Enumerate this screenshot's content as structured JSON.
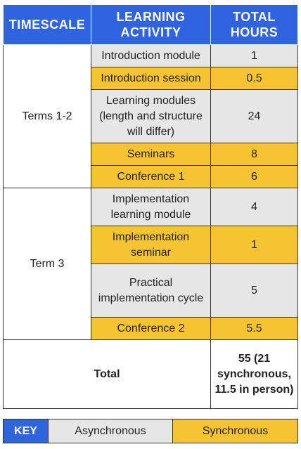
{
  "headers": {
    "timescale": "TIMESCALE",
    "activity": "LEARNING ACTIVITY",
    "hours": "TOTAL HOURS"
  },
  "groups": [
    {
      "timescale": "Terms 1-2",
      "rows": [
        {
          "activity": "Introduction module",
          "hours": "1",
          "type": "async"
        },
        {
          "activity": "Introduction session",
          "hours": "0.5",
          "type": "sync"
        },
        {
          "activity": "Learning modules (length and structure will differ)",
          "hours": "24",
          "type": "async"
        },
        {
          "activity": "Seminars",
          "hours": "8",
          "type": "sync"
        },
        {
          "activity": "Conference 1",
          "hours": "6",
          "type": "sync"
        }
      ]
    },
    {
      "timescale": "Term 3",
      "rows": [
        {
          "activity": "Implementation learning module",
          "hours": "4",
          "type": "async"
        },
        {
          "activity": "Implementation seminar",
          "hours": "1",
          "type": "sync"
        },
        {
          "activity": "Practical implementation cycle",
          "hours": "5",
          "type": "async"
        },
        {
          "activity": "Conference 2",
          "hours": "5.5",
          "type": "sync"
        }
      ]
    }
  ],
  "total": {
    "label": "Total",
    "value": "55 (21 synchronous, 11.5 in person)"
  },
  "key": {
    "label": "KEY",
    "async": "Asynchronous",
    "sync": "Synchronous"
  },
  "colors": {
    "header_blue": "#2f63e0",
    "synchronous_yellow": "#f7c431",
    "asynchronous_grey": "#e6e6e6"
  }
}
